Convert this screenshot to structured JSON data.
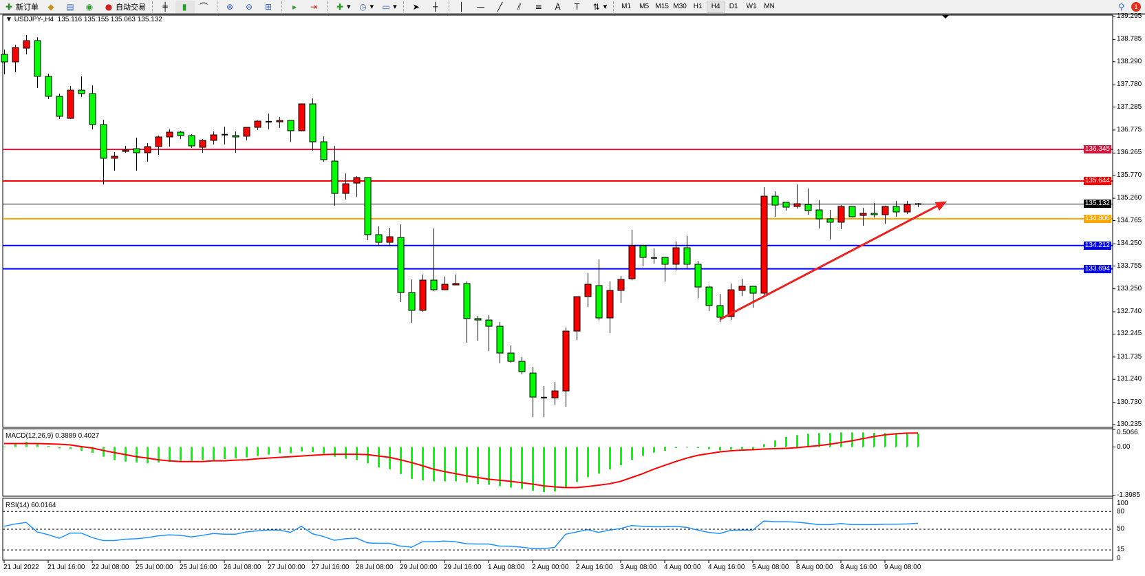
{
  "toolbar": {
    "new_order_label": "新订单",
    "auto_trading_label": "自动交易",
    "timeframes": [
      "M1",
      "M5",
      "M15",
      "M30",
      "H1",
      "H4",
      "D1",
      "W1",
      "MN"
    ],
    "active_timeframe": "H4",
    "notification_count": "1",
    "icons": [
      "new-order-icon",
      "metaeditor-icon",
      "market-watch-icon",
      "signals-icon",
      "auto-trading-icon",
      "bar-chart-icon",
      "candlestick-icon",
      "line-chart-icon",
      "zoom-in-icon",
      "zoom-out-icon",
      "tile-windows-icon",
      "autoscroll-icon",
      "chart-shift-icon",
      "indicators-icon",
      "periods-icon",
      "templates-icon",
      "cursor-icon",
      "crosshair-icon",
      "vertical-line-icon",
      "horizontal-line-icon",
      "trendline-icon",
      "fibonacci-fan-icon",
      "fibonacci-retracement-icon",
      "text-icon",
      "text-label-icon",
      "arrows-icon",
      "search-icon",
      "chat-icon"
    ]
  },
  "chart": {
    "title": "USDJPY-,H4  135.116 135.155 135.063 135.132",
    "colors": {
      "up": "#FF0000",
      "down": "#00FF00",
      "outline": "#000000",
      "background": "#FFFFFF"
    },
    "price_range": [
      130.235,
      139.295
    ],
    "price_ticks": [
      "139.295",
      "138.785",
      "138.290",
      "137.780",
      "137.285",
      "136.775",
      "136.265",
      "135.770",
      "135.260",
      "134.765",
      "134.250",
      "133.755",
      "133.250",
      "132.740",
      "132.245",
      "131.735",
      "131.240",
      "130.730",
      "130.235"
    ],
    "levels": [
      {
        "price": "136.345",
        "color": "#DC143C"
      },
      {
        "price": "135.644",
        "color": "#FF0000"
      },
      {
        "price": "135.132",
        "color": "#000000",
        "bid": true
      },
      {
        "price": "134.806",
        "color": "#FFA500"
      },
      {
        "price": "134.212",
        "color": "#0000FF"
      },
      {
        "price": "133.694",
        "color": "#0000FF"
      }
    ],
    "trendline": {
      "color": "#EE2020",
      "start": {
        "time": "4 Aug 20:00",
        "price": 132.57
      },
      "end": {
        "time": "10 Aug 08:00",
        "price": 135.19
      }
    },
    "candles": [
      [
        138.455,
        138.562,
        138.012,
        138.287
      ],
      [
        138.287,
        138.669,
        138.057,
        138.607
      ],
      [
        138.592,
        138.882,
        138.455,
        138.76
      ],
      [
        138.76,
        138.837,
        137.706,
        137.966
      ],
      [
        137.966,
        138.027,
        137.462,
        137.523
      ],
      [
        137.523,
        137.584,
        137.018,
        137.08
      ],
      [
        137.034,
        137.752,
        137.018,
        137.66
      ],
      [
        137.66,
        137.966,
        137.507,
        137.584
      ],
      [
        137.584,
        137.767,
        136.789,
        136.896
      ],
      [
        136.896,
        137.003,
        135.567,
        136.148
      ],
      [
        136.148,
        136.285,
        135.873,
        136.193
      ],
      [
        136.3,
        136.423,
        136.27,
        136.331
      ],
      [
        136.361,
        136.606,
        135.873,
        136.27
      ],
      [
        136.27,
        136.484,
        136.071,
        136.407
      ],
      [
        136.407,
        136.652,
        136.224,
        136.621
      ],
      [
        136.621,
        136.789,
        136.407,
        136.728
      ],
      [
        136.728,
        136.759,
        136.575,
        136.652
      ],
      [
        136.652,
        136.682,
        136.377,
        136.423
      ],
      [
        136.392,
        136.575,
        136.27,
        136.545
      ],
      [
        136.545,
        136.743,
        136.453,
        136.667
      ],
      [
        136.667,
        136.85,
        136.453,
        136.672
      ],
      [
        136.652,
        136.743,
        136.27,
        136.621
      ],
      [
        136.637,
        136.835,
        136.545,
        136.835
      ],
      [
        136.835,
        136.988,
        136.774,
        136.973
      ],
      [
        136.957,
        137.141,
        136.789,
        136.96
      ],
      [
        136.957,
        137.064,
        136.82,
        136.988
      ],
      [
        136.988,
        136.988,
        136.514,
        136.759
      ],
      [
        136.759,
        137.355,
        136.743,
        137.355
      ],
      [
        137.355,
        137.477,
        136.316,
        136.514
      ],
      [
        136.514,
        136.637,
        136.071,
        136.117
      ],
      [
        136.086,
        136.423,
        135.093,
        135.368
      ],
      [
        135.368,
        135.811,
        135.231,
        135.582
      ],
      [
        135.597,
        135.75,
        135.292,
        135.72
      ],
      [
        135.72,
        135.72,
        134.329,
        134.452
      ],
      [
        134.452,
        134.635,
        134.192,
        134.283
      ],
      [
        134.283,
        134.604,
        134.192,
        134.406
      ],
      [
        134.39,
        134.681,
        132.954,
        133.168
      ],
      [
        133.168,
        133.458,
        132.496,
        132.771
      ],
      [
        132.771,
        133.565,
        132.74,
        133.443
      ],
      [
        133.443,
        134.589,
        133.199,
        133.229
      ],
      [
        133.229,
        133.52,
        133.229,
        133.351
      ],
      [
        133.336,
        133.565,
        133.336,
        133.367
      ],
      [
        133.367,
        133.413,
        132.053,
        132.588
      ],
      [
        132.588,
        132.649,
        132.099,
        132.557
      ],
      [
        132.557,
        132.664,
        131.869,
        132.419
      ],
      [
        132.419,
        132.511,
        131.594,
        131.824
      ],
      [
        131.824,
        131.992,
        131.61,
        131.64
      ],
      [
        131.64,
        131.732,
        131.35,
        131.411
      ],
      [
        131.38,
        131.518,
        130.403,
        130.846
      ],
      [
        130.83,
        131.09,
        130.403,
        130.835
      ],
      [
        130.83,
        131.182,
        130.678,
        130.983
      ],
      [
        130.983,
        132.389,
        130.632,
        132.312
      ],
      [
        132.312,
        133.076,
        132.114,
        133.076
      ],
      [
        133.076,
        133.596,
        132.847,
        133.351
      ],
      [
        133.321,
        133.902,
        132.557,
        132.603
      ],
      [
        132.603,
        133.413,
        132.267,
        133.214
      ],
      [
        133.214,
        133.535,
        132.939,
        133.458
      ],
      [
        133.474,
        134.559,
        133.443,
        134.207
      ],
      [
        134.207,
        134.207,
        133.749,
        133.947
      ],
      [
        133.932,
        134.146,
        133.81,
        133.935
      ],
      [
        133.947,
        133.963,
        133.413,
        133.795
      ],
      [
        133.795,
        134.299,
        133.657,
        134.161
      ],
      [
        134.161,
        134.421,
        133.703,
        133.795
      ],
      [
        133.795,
        133.871,
        133.046,
        133.29
      ],
      [
        133.29,
        133.321,
        132.756,
        132.878
      ],
      [
        132.878,
        133.138,
        132.511,
        132.618
      ],
      [
        132.633,
        133.367,
        132.557,
        133.229
      ],
      [
        133.214,
        133.474,
        133.092,
        133.306
      ],
      [
        133.306,
        133.306,
        132.832,
        133.153
      ],
      [
        133.153,
        135.506,
        133.061,
        135.307
      ],
      [
        135.307,
        135.414,
        134.849,
        135.109
      ],
      [
        135.17,
        135.17,
        134.986,
        135.063
      ],
      [
        135.078,
        135.567,
        135.032,
        135.139
      ],
      [
        135.124,
        135.475,
        134.895,
        134.986
      ],
      [
        135.002,
        135.216,
        134.589,
        134.803
      ],
      [
        134.803,
        135.002,
        134.345,
        134.727
      ],
      [
        134.727,
        135.109,
        134.574,
        135.078
      ],
      [
        135.078,
        135.078,
        134.834,
        134.849
      ],
      [
        134.879,
        135.047,
        134.65,
        134.925
      ],
      [
        134.925,
        135.154,
        134.834,
        134.895
      ],
      [
        134.895,
        135.093,
        134.696,
        135.078
      ],
      [
        135.078,
        135.2,
        134.849,
        134.956
      ],
      [
        134.956,
        135.2,
        134.91,
        135.124
      ],
      [
        135.116,
        135.155,
        135.063,
        135.132
      ]
    ],
    "time_labels": [
      "21 Jul 2022",
      "21 Jul 16:00",
      "22 Jul 08:00",
      "25 Jul 00:00",
      "25 Jul 16:00",
      "26 Jul 08:00",
      "27 Jul 00:00",
      "27 Jul 16:00",
      "28 Jul 08:00",
      "29 Jul 00:00",
      "29 Jul 16:00",
      "1 Aug 08:00",
      "2 Aug 00:00",
      "2 Aug 16:00",
      "3 Aug 08:00",
      "4 Aug 00:00",
      "4 Aug 16:00",
      "5 Aug 08:00",
      "8 Aug 00:00",
      "8 Aug 16:00",
      "9 Aug 08:00"
    ]
  },
  "macd": {
    "title": "MACD(12,26,9) 0.3889 0.4027",
    "range": [
      -1.3985,
      0.5066
    ],
    "tick_labels": [
      "0.5066",
      "0.00",
      "-1.3985"
    ],
    "histogram_color": "#00FF00",
    "signal_color": "#FF0000",
    "histogram": [
      0.01,
      0.08,
      0.15,
      0.08,
      0.03,
      -0.04,
      -0.06,
      -0.11,
      -0.17,
      -0.28,
      -0.37,
      -0.42,
      -0.45,
      -0.47,
      -0.45,
      -0.43,
      -0.4,
      -0.4,
      -0.38,
      -0.38,
      -0.35,
      -0.33,
      -0.3,
      -0.26,
      -0.22,
      -0.18,
      -0.18,
      -0.13,
      -0.15,
      -0.19,
      -0.28,
      -0.34,
      -0.37,
      -0.47,
      -0.59,
      -0.64,
      -0.78,
      -0.92,
      -0.96,
      -0.99,
      -0.99,
      -0.99,
      -1.03,
      -1.07,
      -1.09,
      -1.13,
      -1.17,
      -1.21,
      -1.26,
      -1.3,
      -1.28,
      -1.15,
      -1.01,
      -0.87,
      -0.77,
      -0.64,
      -0.53,
      -0.37,
      -0.26,
      -0.16,
      -0.11,
      -0.03,
      -0.02,
      -0.03,
      -0.06,
      -0.1,
      -0.08,
      -0.06,
      -0.1,
      0.08,
      0.19,
      0.29,
      0.34,
      0.38,
      0.4,
      0.4,
      0.42,
      0.42,
      0.42,
      0.41,
      0.4,
      0.4,
      0.4,
      0.3889
    ],
    "signal": [
      0.1,
      0.1,
      0.1,
      0.1,
      0.09,
      0.08,
      0.06,
      0.01,
      -0.03,
      -0.1,
      -0.16,
      -0.22,
      -0.28,
      -0.32,
      -0.37,
      -0.4,
      -0.42,
      -0.42,
      -0.42,
      -0.4,
      -0.4,
      -0.38,
      -0.37,
      -0.34,
      -0.32,
      -0.3,
      -0.28,
      -0.26,
      -0.24,
      -0.22,
      -0.21,
      -0.21,
      -0.21,
      -0.22,
      -0.26,
      -0.3,
      -0.37,
      -0.45,
      -0.54,
      -0.64,
      -0.71,
      -0.77,
      -0.83,
      -0.88,
      -0.93,
      -0.96,
      -0.99,
      -1.03,
      -1.07,
      -1.12,
      -1.15,
      -1.17,
      -1.17,
      -1.14,
      -1.1,
      -1.06,
      -0.99,
      -0.88,
      -0.77,
      -0.64,
      -0.53,
      -0.42,
      -0.32,
      -0.24,
      -0.19,
      -0.14,
      -0.11,
      -0.09,
      -0.08,
      -0.06,
      -0.05,
      -0.04,
      -0.02,
      0.01,
      0.04,
      0.08,
      0.13,
      0.18,
      0.24,
      0.3,
      0.35,
      0.38,
      0.4,
      0.4027
    ]
  },
  "rsi": {
    "title": "RSI(14) 60.0164",
    "range": [
      0,
      100
    ],
    "tick_labels": [
      "100",
      "80",
      "50",
      "15",
      "0"
    ],
    "levels": [
      80,
      50,
      15
    ],
    "color": "#1E90FF",
    "values": [
      55.0,
      58.8,
      61.5,
      45.4,
      40.8,
      34.6,
      43.5,
      43.5,
      35.8,
      30.8,
      30.8,
      33.1,
      33.8,
      35.8,
      38.8,
      40.4,
      39.6,
      36.9,
      39.6,
      42.7,
      41.5,
      41.5,
      45.4,
      47.3,
      48.5,
      48.5,
      44.6,
      55.0,
      42.3,
      37.7,
      31.2,
      33.8,
      35.0,
      26.9,
      26.2,
      26.2,
      21.5,
      19.6,
      28.8,
      28.8,
      30.0,
      28.8,
      25.4,
      25.0,
      25.0,
      21.5,
      21.2,
      19.6,
      17.3,
      17.3,
      19.2,
      41.5,
      45.4,
      49.2,
      44.6,
      48.5,
      51.2,
      56.2,
      55.0,
      54.2,
      54.2,
      55.0,
      53.1,
      48.5,
      44.6,
      42.7,
      48.1,
      48.5,
      48.5,
      63.8,
      62.7,
      62.7,
      61.9,
      60.0,
      57.7,
      57.7,
      59.6,
      57.7,
      57.7,
      57.7,
      58.5,
      58.5,
      58.8,
      60.0164
    ]
  }
}
